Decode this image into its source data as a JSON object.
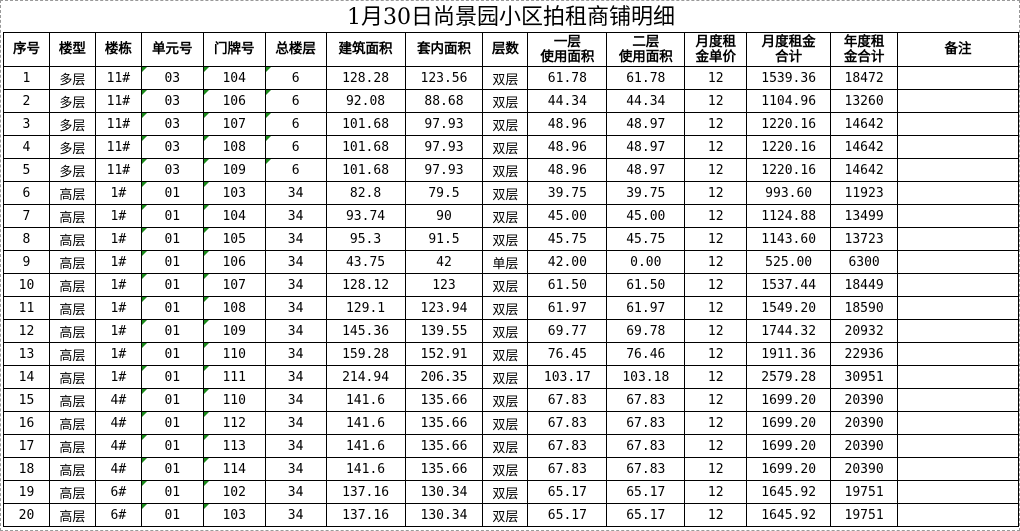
{
  "title": "1月30日尚景园小区拍租商铺明细",
  "headers": [
    "序号",
    "楼型",
    "楼栋",
    "单元号",
    "门牌号",
    "总楼层",
    "建筑面积",
    "套内面积",
    "层数",
    "一层\n使用面积",
    "二层\n使用面积",
    "月度租\n金单价",
    "月度租金\n合计",
    "年度租\n金合计",
    "备注"
  ],
  "rows": [
    [
      "1",
      "多层",
      "11#",
      "03",
      "104",
      "6",
      "128.28",
      "123.56",
      "双层",
      "61.78",
      "61.78",
      "12",
      "1539.36",
      "18472",
      ""
    ],
    [
      "2",
      "多层",
      "11#",
      "03",
      "106",
      "6",
      "92.08",
      "88.68",
      "双层",
      "44.34",
      "44.34",
      "12",
      "1104.96",
      "13260",
      ""
    ],
    [
      "3",
      "多层",
      "11#",
      "03",
      "107",
      "6",
      "101.68",
      "97.93",
      "双层",
      "48.96",
      "48.97",
      "12",
      "1220.16",
      "14642",
      ""
    ],
    [
      "4",
      "多层",
      "11#",
      "03",
      "108",
      "6",
      "101.68",
      "97.93",
      "双层",
      "48.96",
      "48.97",
      "12",
      "1220.16",
      "14642",
      ""
    ],
    [
      "5",
      "多层",
      "11#",
      "03",
      "109",
      "6",
      "101.68",
      "97.93",
      "双层",
      "48.96",
      "48.97",
      "12",
      "1220.16",
      "14642",
      ""
    ],
    [
      "6",
      "高层",
      "1#",
      "01",
      "103",
      "34",
      "82.8",
      "79.5",
      "双层",
      "39.75",
      "39.75",
      "12",
      "993.60",
      "11923",
      ""
    ],
    [
      "7",
      "高层",
      "1#",
      "01",
      "104",
      "34",
      "93.74",
      "90",
      "双层",
      "45.00",
      "45.00",
      "12",
      "1124.88",
      "13499",
      ""
    ],
    [
      "8",
      "高层",
      "1#",
      "01",
      "105",
      "34",
      "95.3",
      "91.5",
      "双层",
      "45.75",
      "45.75",
      "12",
      "1143.60",
      "13723",
      ""
    ],
    [
      "9",
      "高层",
      "1#",
      "01",
      "106",
      "34",
      "43.75",
      "42",
      "单层",
      "42.00",
      "0.00",
      "12",
      "525.00",
      "6300",
      ""
    ],
    [
      "10",
      "高层",
      "1#",
      "01",
      "107",
      "34",
      "128.12",
      "123",
      "双层",
      "61.50",
      "61.50",
      "12",
      "1537.44",
      "18449",
      ""
    ],
    [
      "11",
      "高层",
      "1#",
      "01",
      "108",
      "34",
      "129.1",
      "123.94",
      "双层",
      "61.97",
      "61.97",
      "12",
      "1549.20",
      "18590",
      ""
    ],
    [
      "12",
      "高层",
      "1#",
      "01",
      "109",
      "34",
      "145.36",
      "139.55",
      "双层",
      "69.77",
      "69.78",
      "12",
      "1744.32",
      "20932",
      ""
    ],
    [
      "13",
      "高层",
      "1#",
      "01",
      "110",
      "34",
      "159.28",
      "152.91",
      "双层",
      "76.45",
      "76.46",
      "12",
      "1911.36",
      "22936",
      ""
    ],
    [
      "14",
      "高层",
      "1#",
      "01",
      "111",
      "34",
      "214.94",
      "206.35",
      "双层",
      "103.17",
      "103.18",
      "12",
      "2579.28",
      "30951",
      ""
    ],
    [
      "15",
      "高层",
      "4#",
      "01",
      "110",
      "34",
      "141.6",
      "135.66",
      "双层",
      "67.83",
      "67.83",
      "12",
      "1699.20",
      "20390",
      ""
    ],
    [
      "16",
      "高层",
      "4#",
      "01",
      "112",
      "34",
      "141.6",
      "135.66",
      "双层",
      "67.83",
      "67.83",
      "12",
      "1699.20",
      "20390",
      ""
    ],
    [
      "17",
      "高层",
      "4#",
      "01",
      "113",
      "34",
      "141.6",
      "135.66",
      "双层",
      "67.83",
      "67.83",
      "12",
      "1699.20",
      "20390",
      ""
    ],
    [
      "18",
      "高层",
      "4#",
      "01",
      "114",
      "34",
      "141.6",
      "135.66",
      "双层",
      "67.83",
      "67.83",
      "12",
      "1699.20",
      "20390",
      ""
    ],
    [
      "19",
      "高层",
      "6#",
      "01",
      "102",
      "34",
      "137.16",
      "130.34",
      "双层",
      "65.17",
      "65.17",
      "12",
      "1645.92",
      "19751",
      ""
    ],
    [
      "20",
      "高层",
      "6#",
      "01",
      "103",
      "34",
      "137.16",
      "130.34",
      "双层",
      "65.17",
      "65.17",
      "12",
      "1645.92",
      "19751",
      ""
    ]
  ]
}
